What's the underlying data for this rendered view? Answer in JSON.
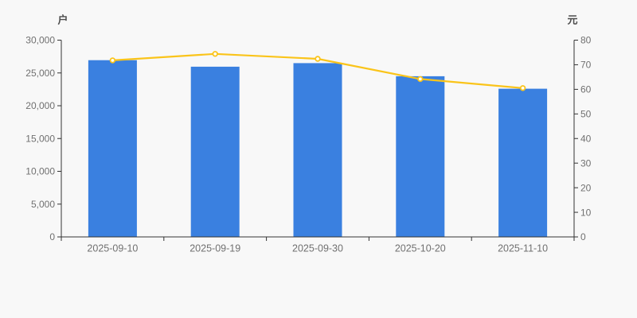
{
  "chart_data": {
    "type": "bar",
    "categories": [
      "2025-09-10",
      "2025-09-19",
      "2025-09-30",
      "2025-10-20",
      "2025-11-10"
    ],
    "series": [
      {
        "id": "holders-bars",
        "type": "bar",
        "axis": "left",
        "unit": "户",
        "values": [
          26950,
          25950,
          26500,
          24500,
          22600
        ],
        "color": "#3A80E0"
      },
      {
        "id": "price-line",
        "type": "line",
        "axis": "right",
        "unit": "元",
        "values": [
          71.8,
          74.4,
          72.4,
          64.2,
          60.5
        ],
        "color": "#FAC41A",
        "marker_fill": "#FFFFFF"
      }
    ],
    "left_axis": {
      "name": "户",
      "min": 0,
      "max": 30000,
      "interval": 5000,
      "tick_labels": [
        "0",
        "5,000",
        "10,000",
        "15,000",
        "20,000",
        "25,000",
        "30,000"
      ]
    },
    "right_axis": {
      "name": "元",
      "min": 0,
      "max": 80,
      "interval": 10,
      "tick_labels": [
        "0",
        "10",
        "20",
        "30",
        "40",
        "50",
        "60",
        "70",
        "80"
      ]
    },
    "title": "",
    "grid": false,
    "legend": false,
    "colors": {
      "background": "#F8F8F8",
      "axis_line": "#333333",
      "tick_label": "#707070",
      "unit_label": "#4D4D4D"
    }
  }
}
